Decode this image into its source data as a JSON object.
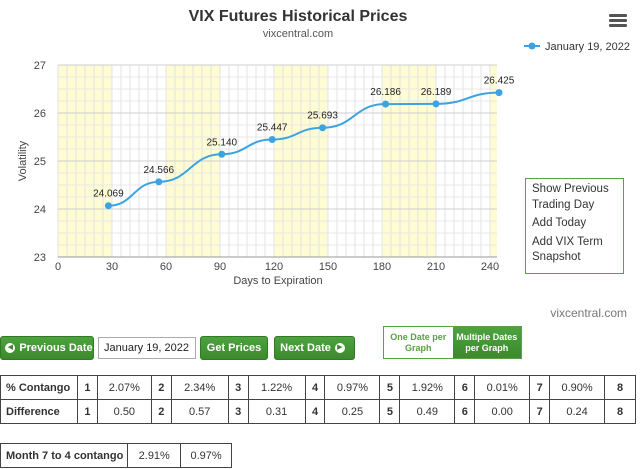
{
  "chart_data": {
    "type": "line",
    "title": "VIX Futures Historical Prices",
    "subtitle": "vixcentral.com",
    "credit": "vixcentral.com",
    "xlabel": "Days to Expiration",
    "ylabel": "Volatility",
    "xlim": [
      0,
      240
    ],
    "ylim": [
      23,
      27
    ],
    "x_ticks": [
      0,
      30,
      60,
      90,
      120,
      150,
      180,
      210,
      240
    ],
    "y_ticks": [
      23,
      24,
      25,
      26,
      27
    ],
    "grid": true,
    "legend": "top-right",
    "series": [
      {
        "name": "January 19, 2022",
        "color": "#3ca3e3",
        "x": [
          28,
          56,
          91,
          119,
          147,
          182,
          210,
          245
        ],
        "y": [
          24.069,
          24.566,
          25.14,
          25.447,
          25.693,
          26.186,
          26.189,
          26.425
        ],
        "labels": [
          "24.069",
          "24.566",
          "25.140",
          "25.447",
          "25.693",
          "26.186",
          "26.189",
          "26.425"
        ]
      }
    ],
    "shaded_bands": [
      [
        0,
        30
      ],
      [
        60,
        90
      ],
      [
        120,
        150
      ],
      [
        180,
        210
      ],
      [
        240,
        245
      ]
    ],
    "band_color": "#fdfcd2"
  },
  "menu": {
    "show_previous": "Show Previous Trading Day",
    "add_today": "Add Today",
    "add_vix_term": "Add VIX Term",
    "snapshot": "Snapshot"
  },
  "controls": {
    "previous_date": "Previous Date",
    "date_value": "January 19, 2022",
    "get_prices": "Get Prices",
    "next_date": "Next Date",
    "one_date": "One Date per Graph",
    "multiple_dates": "Multiple Dates per Graph"
  },
  "table": {
    "rows": [
      {
        "label": "% Contango",
        "cells": [
          "1",
          "2.07%",
          "2",
          "2.34%",
          "3",
          "1.22%",
          "4",
          "0.97%",
          "5",
          "1.92%",
          "6",
          "0.01%",
          "7",
          "0.90%",
          "8"
        ]
      },
      {
        "label": "Difference",
        "cells": [
          "1",
          "0.50",
          "2",
          "0.57",
          "3",
          "0.31",
          "4",
          "0.25",
          "5",
          "0.49",
          "6",
          "0.00",
          "7",
          "0.24",
          "8"
        ]
      }
    ]
  },
  "month_table": {
    "label": "Month 7 to 4 contango",
    "v1": "2.91%",
    "v2": "0.97%"
  }
}
